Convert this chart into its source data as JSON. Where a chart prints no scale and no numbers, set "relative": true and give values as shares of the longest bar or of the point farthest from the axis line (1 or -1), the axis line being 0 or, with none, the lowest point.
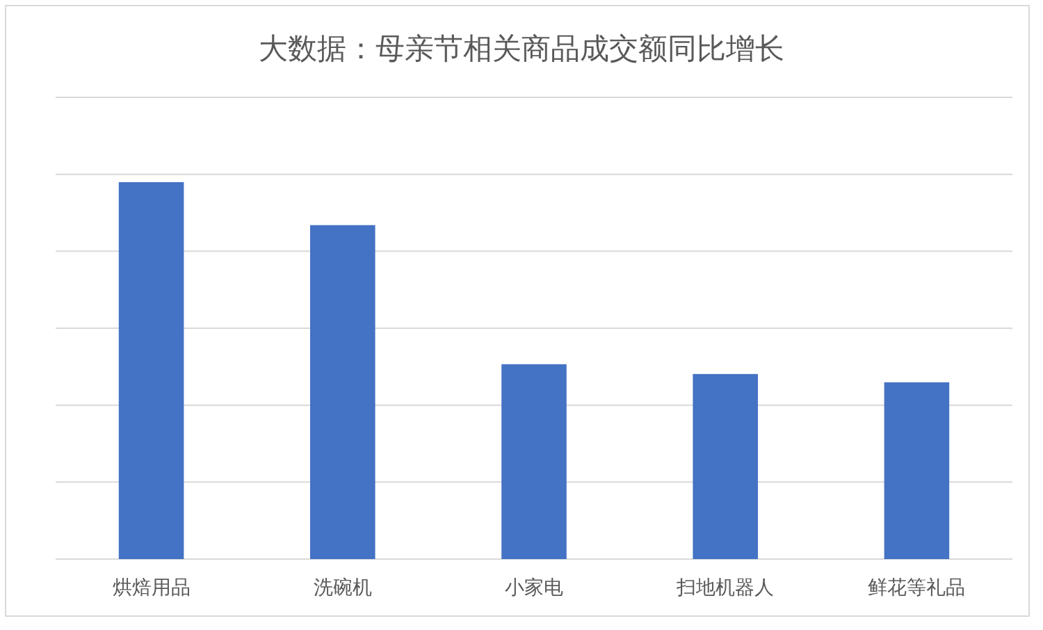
{
  "chart_data": {
    "type": "bar",
    "title": "大数据：母亲节相关商品成交额同比增长",
    "categories": [
      "烘焙用品",
      "洗碗机",
      "小家电",
      "扫地机器人",
      "鲜花等礼品"
    ],
    "values": [
      1,
      0.886,
      0.517,
      0.491,
      0.469
    ],
    "color": "#4472c4",
    "relative": true,
    "grid": "y"
  }
}
